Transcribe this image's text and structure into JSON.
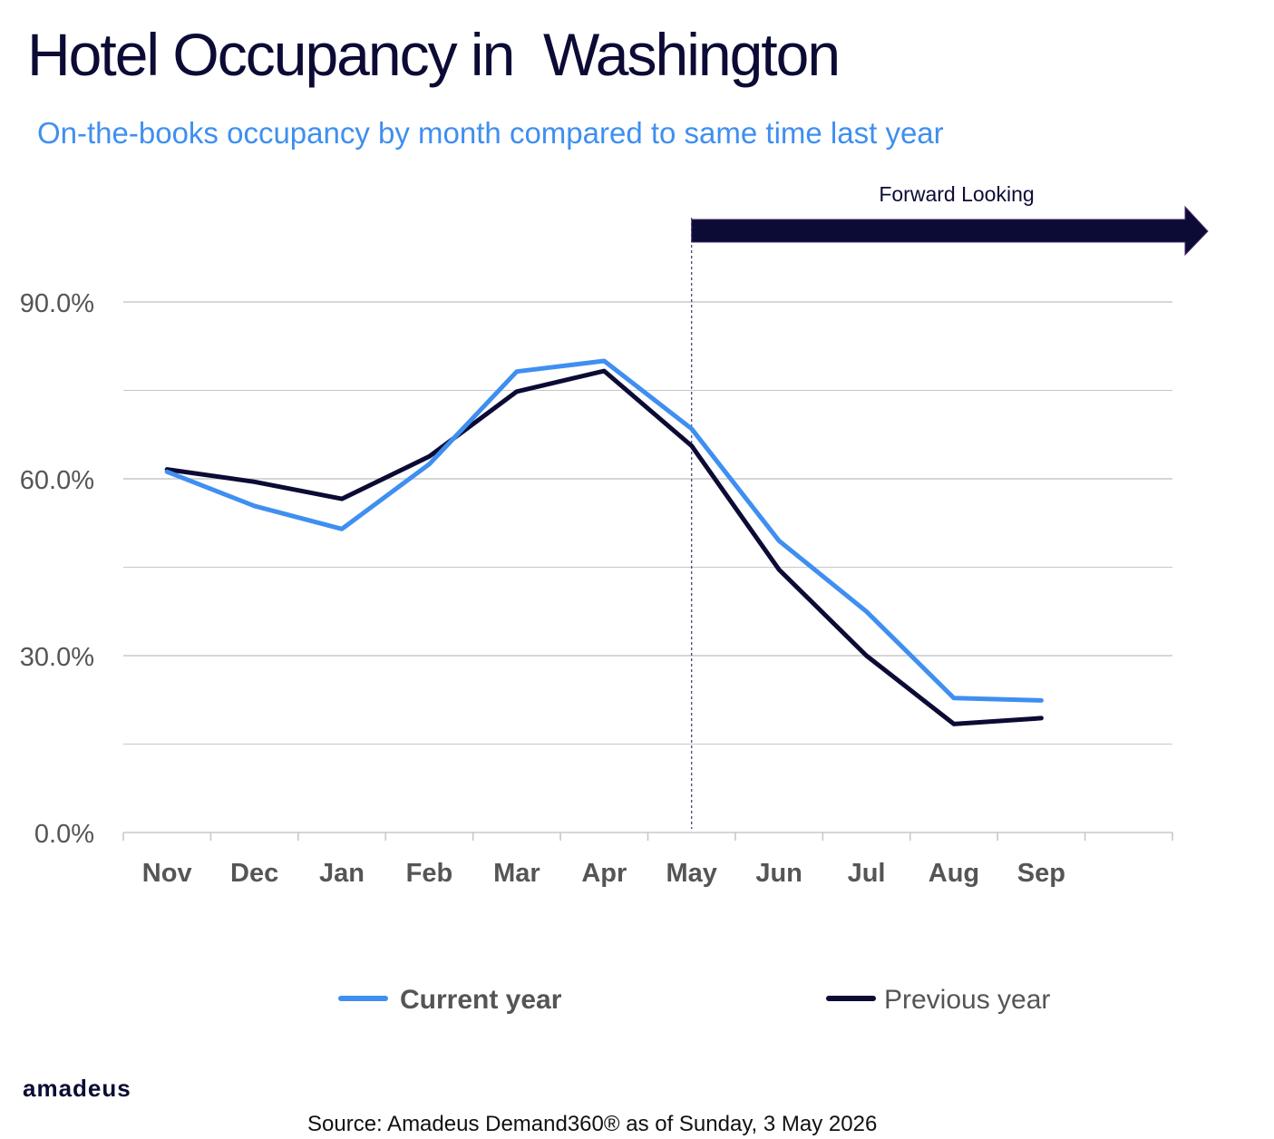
{
  "header": {
    "title": "Hotel Occupancy in  Washington",
    "subtitle": "On-the-books occupancy by month compared to same time last year"
  },
  "chart_data": {
    "type": "line",
    "title": "Hotel Occupancy in  Washington",
    "subtitle": "On-the-books occupancy by month compared to same time last year",
    "categories": [
      "Nov",
      "Dec",
      "Jan",
      "Feb",
      "Mar",
      "Apr",
      "May",
      "Jun",
      "Jul",
      "Aug",
      "Sep"
    ],
    "series": [
      {
        "name": "Current year",
        "color": "#3f8ff0",
        "values": [
          61.2,
          55.4,
          51.5,
          62.5,
          78.2,
          80.0,
          68.5,
          49.5,
          37.5,
          22.8,
          22.4
        ]
      },
      {
        "name": "Previous year",
        "color": "#0b0b35",
        "values": [
          61.6,
          59.5,
          56.6,
          63.8,
          74.8,
          78.3,
          65.6,
          44.6,
          30.0,
          18.4,
          19.4
        ]
      }
    ],
    "yticks": [
      "0.0%",
      "30.0%",
      "60.0%",
      "90.0%"
    ],
    "ylim": [
      0,
      90
    ],
    "grid": true,
    "legend_position": "bottom",
    "annotation": {
      "label": "Forward Looking",
      "start_category": "May"
    }
  },
  "footer": {
    "logo": "amadeus",
    "source": "Source: Amadeus Demand360® as of Sunday, 3 May 2026"
  },
  "colors": {
    "current": "#3f8ff0",
    "previous": "#0b0b35",
    "grid": "#c8c8c8",
    "axis_text": "#555555"
  }
}
